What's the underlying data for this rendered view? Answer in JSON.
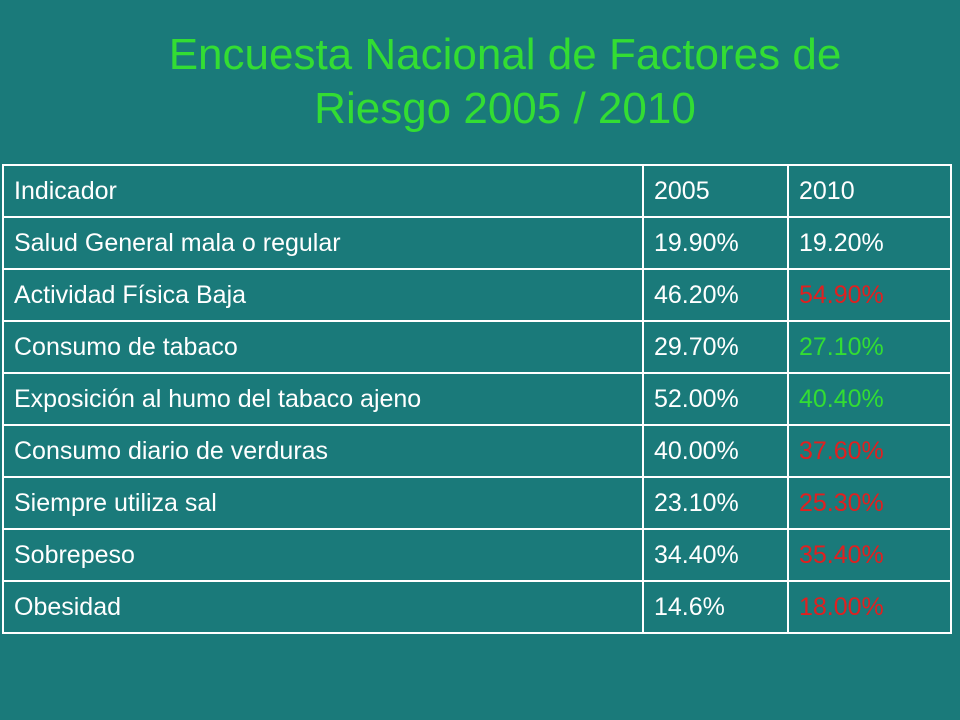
{
  "title": {
    "line1": "Encuesta Nacional de Factores de",
    "line2": "Riesgo 2005 / 2010"
  },
  "table": {
    "headers": [
      "Indicador",
      "2005",
      "2010"
    ],
    "rows": [
      {
        "indicator": "Salud General mala o regular",
        "y2005": "19.90%",
        "y2010": "19.20%",
        "y2010_color": "#ffffff"
      },
      {
        "indicator": "Actividad Física Baja",
        "y2005": "46.20%",
        "y2010": "54.90%",
        "y2010_color": "#e02020"
      },
      {
        "indicator": "Consumo de tabaco",
        "y2005": "29.70%",
        "y2010": "27.10%",
        "y2010_color": "#33dd33"
      },
      {
        "indicator": "Exposición al humo del tabaco ajeno",
        "y2005": "52.00%",
        "y2010": "40.40%",
        "y2010_color": "#33dd33"
      },
      {
        "indicator": "Consumo diario de verduras",
        "y2005": "40.00%",
        "y2010": "37.60%",
        "y2010_color": "#e02020"
      },
      {
        "indicator": "Siempre utiliza sal",
        "y2005": "23.10%",
        "y2010": "25.30%",
        "y2010_color": "#e02020"
      },
      {
        "indicator": "Sobrepeso",
        "y2005": "34.40%",
        "y2010": "35.40%",
        "y2010_color": "#e02020"
      },
      {
        "indicator": "Obesidad",
        "y2005": "14.6%",
        "y2010": "18.00%",
        "y2010_color": "#e02020"
      }
    ]
  },
  "colors": {
    "background": "#1a7a7a",
    "title": "#33dd33",
    "text": "#ffffff",
    "worse": "#e02020",
    "better": "#33dd33"
  }
}
